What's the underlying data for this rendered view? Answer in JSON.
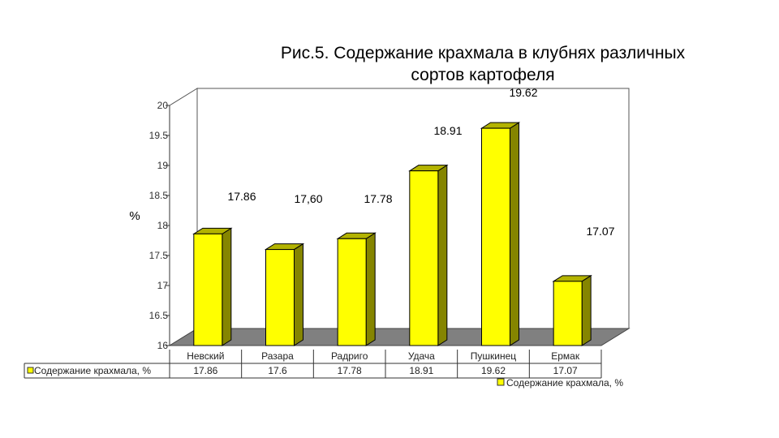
{
  "chart_data": {
    "type": "bar",
    "title": "Рис.5.  Содержание крахмала в клубнях различных\nсортов картофеля",
    "ylabel": "%",
    "xlabel": "",
    "categories": [
      "Невский",
      "Разара",
      "Радриго",
      "Удача",
      "Пушкинец",
      "Ермак"
    ],
    "series": [
      {
        "name": "Содержание крахмала, %",
        "values": [
          17.86,
          17.6,
          17.78,
          18.91,
          19.62,
          17.07
        ]
      }
    ],
    "data_labels": [
      "17.86",
      "17,60",
      "17.78",
      "18.91",
      "19.62",
      "17.07"
    ],
    "table_values": [
      "17.86",
      "17.6",
      "17.78",
      "18.91",
      "19.62",
      "17.07"
    ],
    "yticks": [
      "16",
      "16.5",
      "17",
      "17.5",
      "18",
      "18.5",
      "19",
      "19.5",
      "20"
    ],
    "ylim": [
      16,
      20
    ],
    "bar_style": "3d",
    "grid": false,
    "legend_position": "bottom-right",
    "data_table": true,
    "colors": {
      "bar_front": "#ffff00",
      "bar_side": "#858500",
      "bar_top": "#b3b300",
      "floor": "#808080",
      "walls": "#ffffff",
      "outline": "#000000"
    }
  }
}
